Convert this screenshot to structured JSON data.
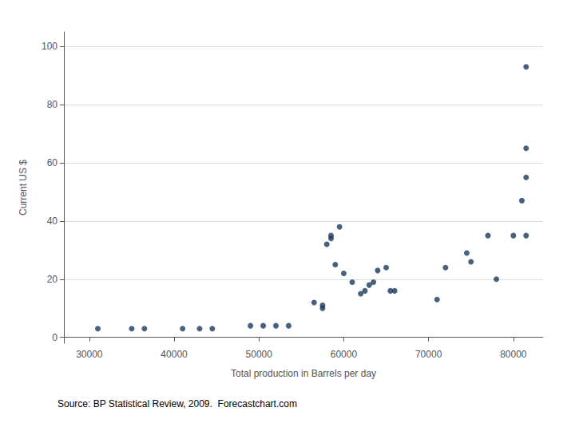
{
  "chart_data": {
    "type": "scatter",
    "xlabel": "Total production in Barrels per day",
    "ylabel": "Current US $",
    "annotation": "Source: BP Statistical Review, 2009.  Forecastchart.com",
    "x": [
      31000,
      35000,
      36500,
      41000,
      43000,
      44500,
      49000,
      50500,
      52000,
      53500,
      56500,
      57500,
      57500,
      58000,
      58500,
      58500,
      59000,
      59500,
      60000,
      61000,
      62000,
      62500,
      63000,
      63500,
      64000,
      65000,
      65500,
      66000,
      71000,
      72000,
      74500,
      75000,
      77000,
      78000,
      80000,
      81000,
      81500,
      81500,
      81500,
      81500
    ],
    "values": [
      3,
      3,
      3,
      3,
      3,
      3,
      4,
      4,
      4,
      4,
      12,
      10,
      11,
      32,
      34,
      35,
      25,
      38,
      22,
      19,
      15,
      16,
      18,
      19,
      23,
      24,
      16,
      16,
      13,
      24,
      29,
      26,
      35,
      20,
      35,
      47,
      55,
      65,
      35,
      93
    ],
    "color": "#1a3a5c",
    "xlim": [
      27000,
      83500
    ],
    "ylim": [
      -2,
      105
    ],
    "xticks": [
      30000,
      40000,
      50000,
      60000,
      70000,
      80000
    ],
    "yticks": [
      0,
      20,
      40,
      60,
      80,
      100
    ],
    "grid": "y"
  }
}
